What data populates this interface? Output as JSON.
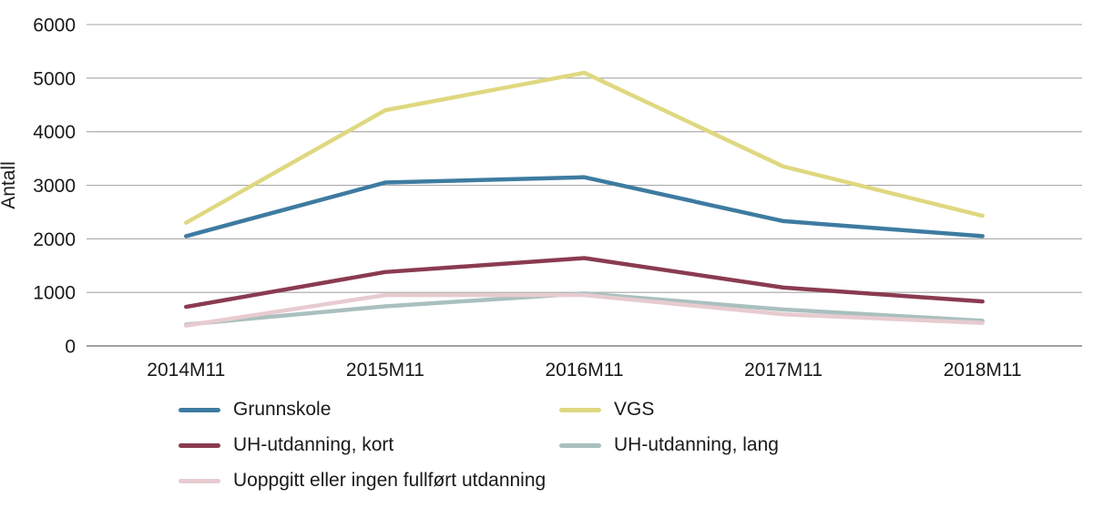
{
  "chart_data": {
    "type": "line",
    "title": "",
    "xlabel": "",
    "ylabel": "Antall",
    "ylim": [
      0,
      6000
    ],
    "ytick_step": 1000,
    "grid": true,
    "legend_position": "bottom",
    "x": [
      "2014M11",
      "2015M11",
      "2016M11",
      "2017M11",
      "2018M11"
    ],
    "series": [
      {
        "name": "Grunnskole",
        "color": "#3E7BA1",
        "values": [
          2050,
          3050,
          3150,
          2330,
          2050
        ]
      },
      {
        "name": "VGS",
        "color": "#DFD880",
        "values": [
          2300,
          4400,
          5100,
          3350,
          2430
        ]
      },
      {
        "name": "UH-utdanning, kort",
        "color": "#8A3B51",
        "values": [
          730,
          1380,
          1640,
          1090,
          830
        ]
      },
      {
        "name": "UH-utdanning, lang",
        "color": "#A9C0BE",
        "values": [
          400,
          740,
          980,
          680,
          470
        ]
      },
      {
        "name": "Uoppgitt eller ingen fullført utdanning",
        "color": "#E7CBD0",
        "values": [
          380,
          950,
          950,
          590,
          430
        ]
      }
    ],
    "axis_color": "#808080",
    "gridline_color": "#A6A6A6"
  }
}
